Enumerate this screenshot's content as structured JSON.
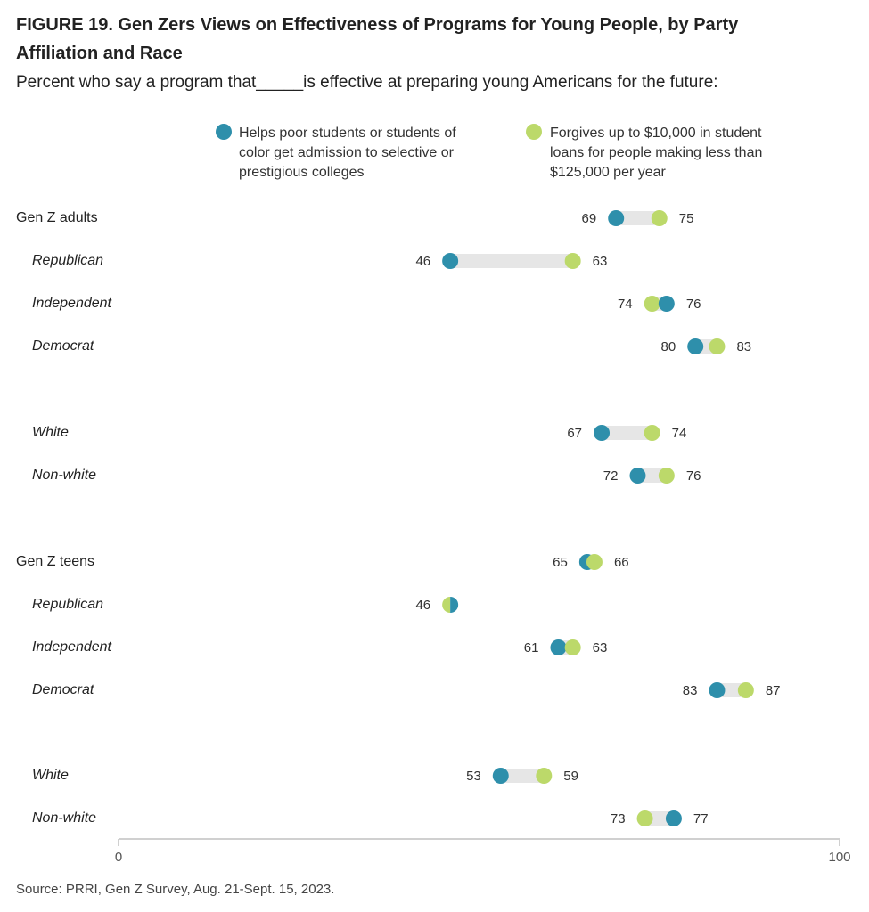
{
  "title": "FIGURE 19. Gen Zers Views on Effectiveness of Programs for Young People, by Party Affiliation and Race",
  "subtitle": "Percent who say a program that_____is effective at preparing young Americans for the future:",
  "source": "Source: PRRI, Gen Z Survey, Aug. 21-Sept. 15, 2023.",
  "colors": {
    "series_a": "#2e8fab",
    "series_b": "#bcd96a",
    "connector": "#e6e6e6",
    "axis": "#d0d0d0"
  },
  "chart_data": {
    "type": "dumbbell",
    "xlim": [
      0,
      100
    ],
    "x_ticks": [
      "0",
      "100"
    ],
    "legend": [
      {
        "key": "a",
        "lines": [
          "Helps poor students or students of",
          "color get admission to selective or",
          "prestigious colleges"
        ]
      },
      {
        "key": "b",
        "lines": [
          "Forgives up to $10,000 in student",
          "loans for people making less than",
          "$125,000 per year"
        ]
      }
    ],
    "rows": [
      {
        "label": "Gen Z adults",
        "group": true,
        "a": 69,
        "b": 75
      },
      {
        "label": "Republican",
        "group": false,
        "a": 46,
        "b": 63
      },
      {
        "label": "Independent",
        "group": false,
        "a": 76,
        "b": 74
      },
      {
        "label": "Democrat",
        "group": false,
        "a": 80,
        "b": 83
      },
      {
        "label": "White",
        "group": false,
        "a": 67,
        "b": 74
      },
      {
        "label": "Non-white",
        "group": false,
        "a": 72,
        "b": 76
      },
      {
        "label": "Gen Z teens",
        "group": true,
        "a": 65,
        "b": 66
      },
      {
        "label": "Republican",
        "group": false,
        "a": 46,
        "b": 46
      },
      {
        "label": "Independent",
        "group": false,
        "a": 61,
        "b": 63
      },
      {
        "label": "Democrat",
        "group": false,
        "a": 83,
        "b": 87
      },
      {
        "label": "White",
        "group": false,
        "a": 53,
        "b": 59
      },
      {
        "label": "Non-white",
        "group": false,
        "a": 77,
        "b": 73
      }
    ]
  }
}
